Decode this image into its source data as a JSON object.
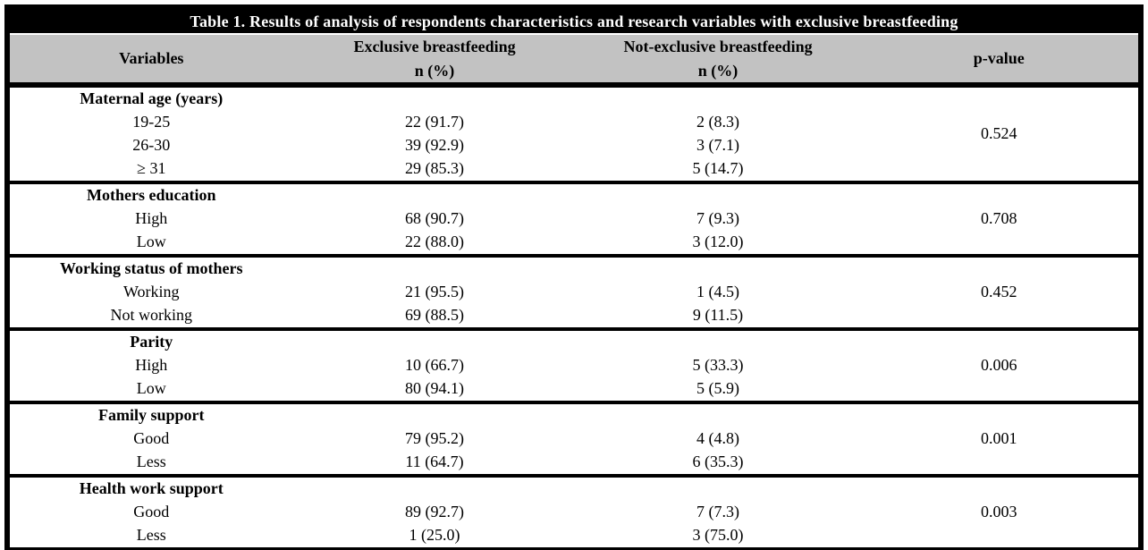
{
  "table": {
    "title": "Table 1. Results of analysis of respondents characteristics and research variables with exclusive breastfeeding",
    "columns": {
      "variables": "Variables",
      "exclusive": "Exclusive breastfeeding",
      "not_exclusive": "Not-exclusive breastfeeding",
      "n_pct": "n (%)",
      "p_value": "p-value"
    },
    "sections": [
      {
        "variable": "Maternal age (years)",
        "p_value": "0.524",
        "rows": [
          {
            "label": "19-25",
            "exclusive": "22 (91.7)",
            "not_exclusive": "2 (8.3)"
          },
          {
            "label": "26-30",
            "exclusive": "39 (92.9)",
            "not_exclusive": "3 (7.1)"
          },
          {
            "label": "≥ 31",
            "exclusive": "29 (85.3)",
            "not_exclusive": "5 (14.7)"
          }
        ]
      },
      {
        "variable": "Mothers education",
        "p_value": "0.708",
        "rows": [
          {
            "label": "High",
            "exclusive": "68 (90.7)",
            "not_exclusive": "7 (9.3)"
          },
          {
            "label": "Low",
            "exclusive": "22 (88.0)",
            "not_exclusive": "3 (12.0)"
          }
        ]
      },
      {
        "variable": "Working status of mothers",
        "p_value": "0.452",
        "rows": [
          {
            "label": "Working",
            "exclusive": "21 (95.5)",
            "not_exclusive": "1 (4.5)"
          },
          {
            "label": "Not working",
            "exclusive": "69 (88.5)",
            "not_exclusive": "9 (11.5)"
          }
        ]
      },
      {
        "variable": "Parity",
        "p_value": "0.006",
        "rows": [
          {
            "label": "High",
            "exclusive": "10 (66.7)",
            "not_exclusive": "5 (33.3)"
          },
          {
            "label": "Low",
            "exclusive": "80 (94.1)",
            "not_exclusive": "5 (5.9)"
          }
        ]
      },
      {
        "variable": "Family support",
        "p_value": "0.001",
        "rows": [
          {
            "label": "Good",
            "exclusive": "79 (95.2)",
            "not_exclusive": "4 (4.8)"
          },
          {
            "label": "Less",
            "exclusive": "11 (64.7)",
            "not_exclusive": "6 (35.3)"
          }
        ]
      },
      {
        "variable": "Health work support",
        "p_value": "0.003",
        "rows": [
          {
            "label": "Good",
            "exclusive": "89 (92.7)",
            "not_exclusive": "7 (7.3)"
          },
          {
            "label": "Less",
            "exclusive": "1 (25.0)",
            "not_exclusive": "3 (75.0)"
          }
        ]
      }
    ]
  },
  "colors": {
    "title_bg": "#000000",
    "title_text": "#ffffff",
    "header_bg": "#c2c2c2",
    "border": "#000000",
    "body_bg": "#ffffff"
  }
}
